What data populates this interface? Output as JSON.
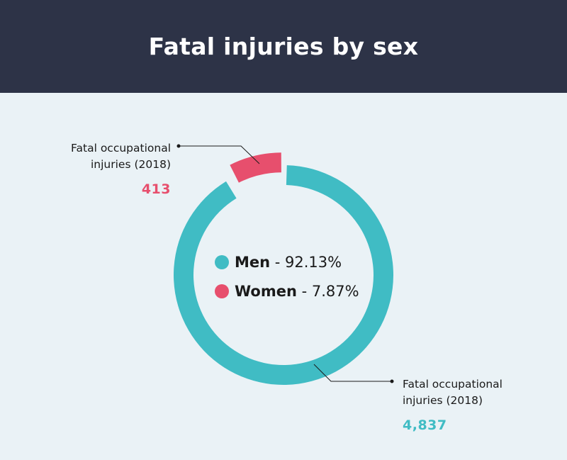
{
  "chart_data": {
    "type": "pie",
    "title": "Fatal injuries by sex",
    "categories": [
      "Men",
      "Women"
    ],
    "values": [
      92.13,
      7.87
    ],
    "counts": [
      4837,
      413
    ],
    "count_labels": [
      "4,837",
      "413"
    ],
    "percent_labels": [
      "92.13%",
      "7.87%"
    ],
    "annotation_text": [
      "Fatal occupational",
      "injuries (2018)"
    ],
    "colors": [
      "#40bcc4",
      "#e74f6d"
    ],
    "legend_placement": "center"
  }
}
